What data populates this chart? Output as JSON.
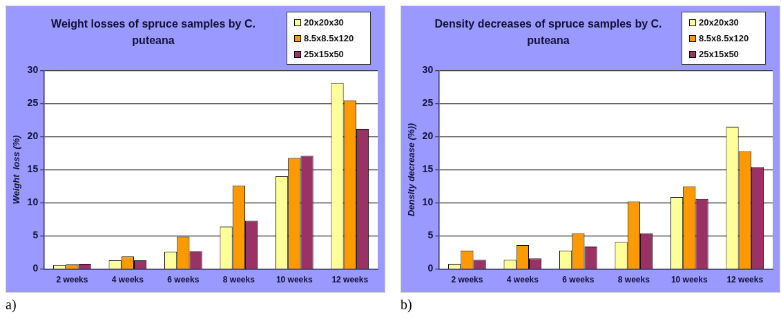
{
  "chart_data": [
    {
      "type": "bar",
      "title": "Weight losses of spruce samples by C. puteana",
      "ylabel": "Weight  loss (%)",
      "categories": [
        "2 weeks",
        "4 weeks",
        "6 weeks",
        "8 weeks",
        "10 weeks",
        "12 weeks"
      ],
      "series": [
        {
          "name": "20x20x30",
          "color": "#ffff99",
          "values": [
            0.6,
            1.3,
            2.6,
            6.4,
            14.0,
            28.1
          ]
        },
        {
          "name": "8.5x8.5x120",
          "color": "#ff9900",
          "values": [
            0.7,
            1.9,
            4.9,
            12.6,
            16.8,
            25.5
          ]
        },
        {
          "name": "25x15x50",
          "color": "#993366",
          "values": [
            0.8,
            1.3,
            2.7,
            7.3,
            17.1,
            21.2
          ]
        }
      ],
      "ylim": [
        0,
        30
      ],
      "yticks": [
        0,
        5,
        10,
        15,
        20,
        25,
        30
      ],
      "grid": "y",
      "legend": "top right",
      "annotations": [
        "a)"
      ]
    },
    {
      "type": "bar",
      "title": "Density decreases of spruce samples by C. puteana",
      "ylabel": "Density decrease (%))",
      "categories": [
        "2 weeks",
        "4 weeks",
        "6 weeks",
        "8 weeks",
        "10 weeks",
        "12 weeks"
      ],
      "series": [
        {
          "name": "20x20x30",
          "color": "#ffff99",
          "values": [
            0.8,
            1.4,
            2.8,
            4.1,
            10.9,
            21.5
          ]
        },
        {
          "name": "8.5x8.5x120",
          "color": "#ff9900",
          "values": [
            2.8,
            3.6,
            5.4,
            10.2,
            12.5,
            17.8
          ]
        },
        {
          "name": "25x15x50",
          "color": "#993366",
          "values": [
            1.4,
            1.6,
            3.4,
            5.4,
            10.6,
            15.4
          ]
        }
      ],
      "ylim": [
        0,
        30
      ],
      "yticks": [
        0,
        5,
        10,
        15,
        20,
        25,
        30
      ],
      "grid": "y",
      "legend": "top right",
      "annotations": [
        "b)"
      ]
    }
  ]
}
